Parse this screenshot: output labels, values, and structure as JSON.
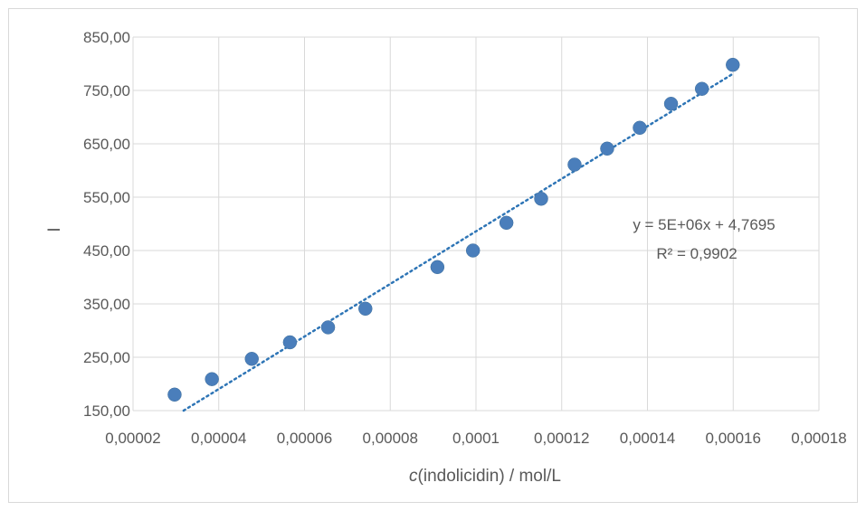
{
  "chart_data": {
    "type": "scatter",
    "xlabel_italic": "c",
    "xlabel_rest": "(indolicidin) / mol/L",
    "ylabel": "I",
    "xlim": [
      2e-05,
      0.00018
    ],
    "ylim": [
      150,
      850
    ],
    "x_ticks": [
      "0,00002",
      "0,00004",
      "0,00006",
      "0,00008",
      "0,0001",
      "0,00012",
      "0,00014",
      "0,00016",
      "0,00018"
    ],
    "y_ticks": [
      "150,00",
      "250,00",
      "350,00",
      "450,00",
      "550,00",
      "650,00",
      "750,00",
      "850,00"
    ],
    "grid": true,
    "series": [
      {
        "color": "#4a7ebb",
        "x": [
          2.97e-05,
          3.84e-05,
          4.77e-05,
          5.66e-05,
          6.55e-05,
          7.42e-05,
          9.1e-05,
          9.93e-05,
          0.0001071,
          0.0001152,
          0.000123,
          0.0001306,
          0.0001382,
          0.0001455,
          0.0001527,
          0.0001599
        ],
        "y": [
          180,
          209,
          247,
          278,
          306,
          341,
          419,
          450,
          502,
          547,
          611,
          641,
          680,
          725,
          753,
          798
        ]
      }
    ],
    "trendline": {
      "type": "linear",
      "x_range": [
        3.18e-05,
        0.0001597
      ],
      "y_range": [
        150,
        780
      ],
      "color": "#2e75b6",
      "equation": "y = 5E+06x + 4,7695",
      "r2": "R² = 0,9902"
    }
  }
}
